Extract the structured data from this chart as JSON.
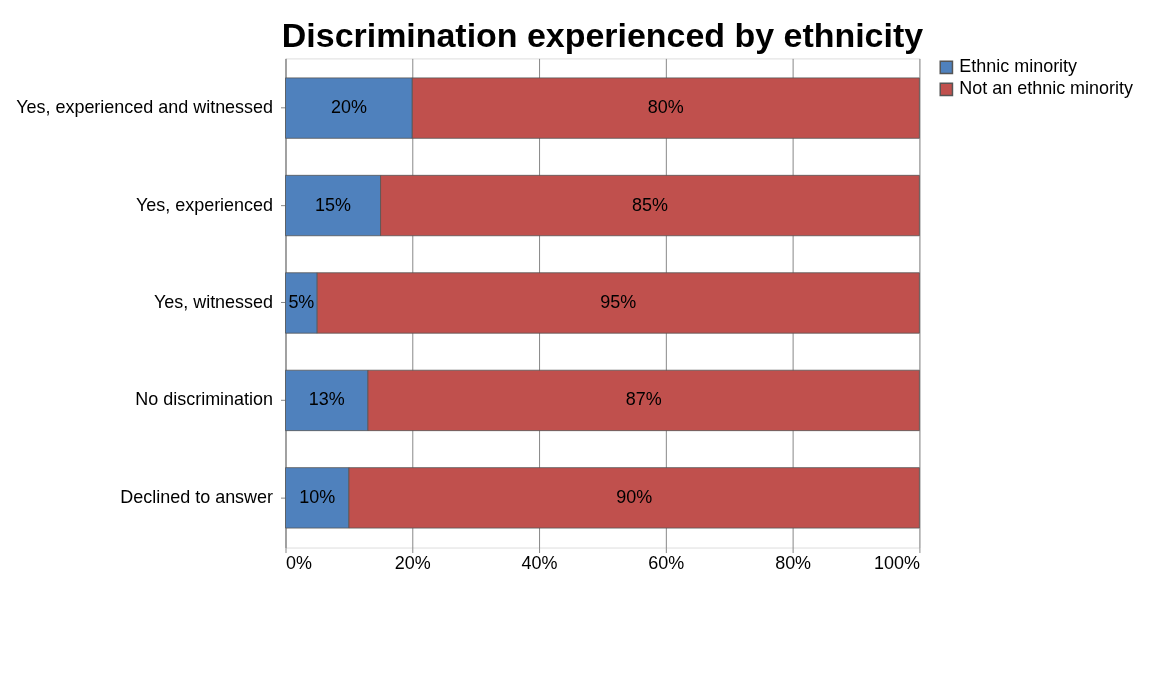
{
  "chart_data": {
    "type": "bar",
    "orientation": "horizontal",
    "stacked": true,
    "title": "Discrimination experienced by ethnicity",
    "categories": [
      "Yes, experienced and witnessed",
      "Yes, experienced",
      "Yes, witnessed",
      "No discrimination",
      "Declined to answer"
    ],
    "series": [
      {
        "name": "Ethnic minority",
        "color": "#4f81bd",
        "values": [
          20,
          15,
          5,
          13,
          10
        ],
        "value_labels": [
          "20%",
          "15%",
          "5%",
          "13%",
          "10%"
        ]
      },
      {
        "name": "Not an ethnic minority",
        "color": "#c0504d",
        "values": [
          80,
          85,
          95,
          87,
          90
        ],
        "value_labels": [
          "80%",
          "85%",
          "95%",
          "87%",
          "90%"
        ]
      }
    ],
    "xlim": [
      0,
      100
    ],
    "xticks": [
      {
        "value": 0,
        "label": "0%"
      },
      {
        "value": 20,
        "label": "20%"
      },
      {
        "value": 40,
        "label": "40%"
      },
      {
        "value": 60,
        "label": "60%"
      },
      {
        "value": 80,
        "label": "80%"
      },
      {
        "value": 100,
        "label": "100%"
      }
    ],
    "grid": "x",
    "legend": "right"
  }
}
